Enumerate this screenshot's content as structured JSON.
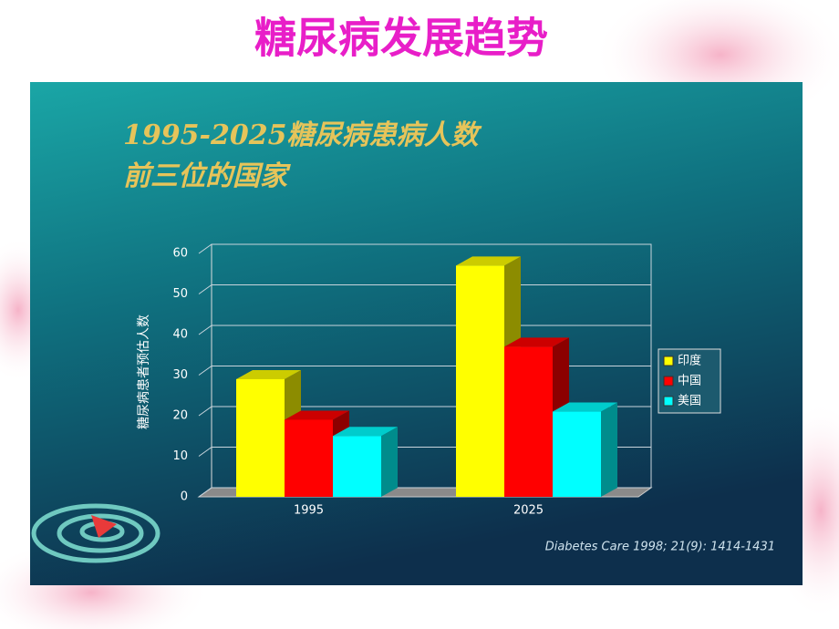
{
  "slide_title": "糖尿病发展趋势",
  "chart_data": {
    "type": "bar3d",
    "title": "1995-2025糖尿病患病人数",
    "subtitle": "前三位的国家",
    "y_label": "糖尿病患者预估人数",
    "categories": [
      "1995",
      "2025"
    ],
    "series": [
      {
        "name": "印度",
        "color": "#ffff00",
        "values": [
          29,
          57
        ]
      },
      {
        "name": "中国",
        "color": "#ff0000",
        "values": [
          19,
          37
        ]
      },
      {
        "name": "美国",
        "color": "#00ffff",
        "values": [
          15,
          21
        ]
      }
    ],
    "ylim": [
      0,
      60
    ],
    "yticks": [
      0,
      10,
      20,
      30,
      40,
      50,
      60
    ],
    "grid": true,
    "legend": "right",
    "annotation": "Diabetes Care 1998; 21(9): 1414-1431"
  }
}
